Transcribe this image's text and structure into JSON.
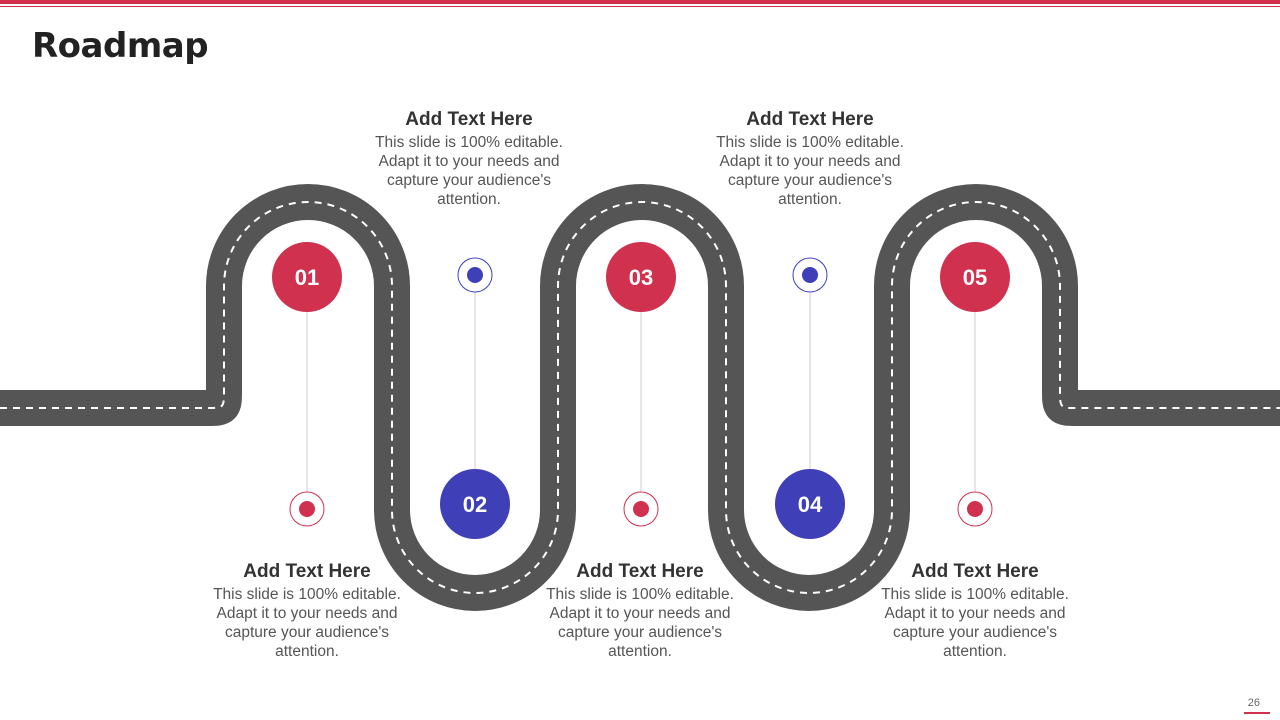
{
  "slide": {
    "title": "Roadmap",
    "page_number": "26"
  },
  "colors": {
    "accent_red": "#d0314f",
    "accent_blue": "#3f3fb8",
    "road": "#555555",
    "lane_marking": "#ffffff",
    "connector": "#cccccc"
  },
  "milestones": [
    {
      "number": "01",
      "color": "red",
      "heading": "Add Text Here",
      "body": "This slide is 100% editable. Adapt it to your needs and capture your audience's attention."
    },
    {
      "number": "02",
      "color": "blue",
      "heading": "Add Text Here",
      "body": "This slide is 100% editable. Adapt it to your needs and capture your audience's attention."
    },
    {
      "number": "03",
      "color": "red",
      "heading": "Add Text Here",
      "body": "This slide is 100% editable. Adapt it to your needs and capture your audience's attention."
    },
    {
      "number": "04",
      "color": "blue",
      "heading": "Add Text Here",
      "body": "This slide is 100% editable. Adapt it to your needs and capture your audience's attention."
    },
    {
      "number": "05",
      "color": "red",
      "heading": "Add Text Here",
      "body": "This slide is 100% editable. Adapt it to your needs and capture your audience's attention."
    }
  ]
}
